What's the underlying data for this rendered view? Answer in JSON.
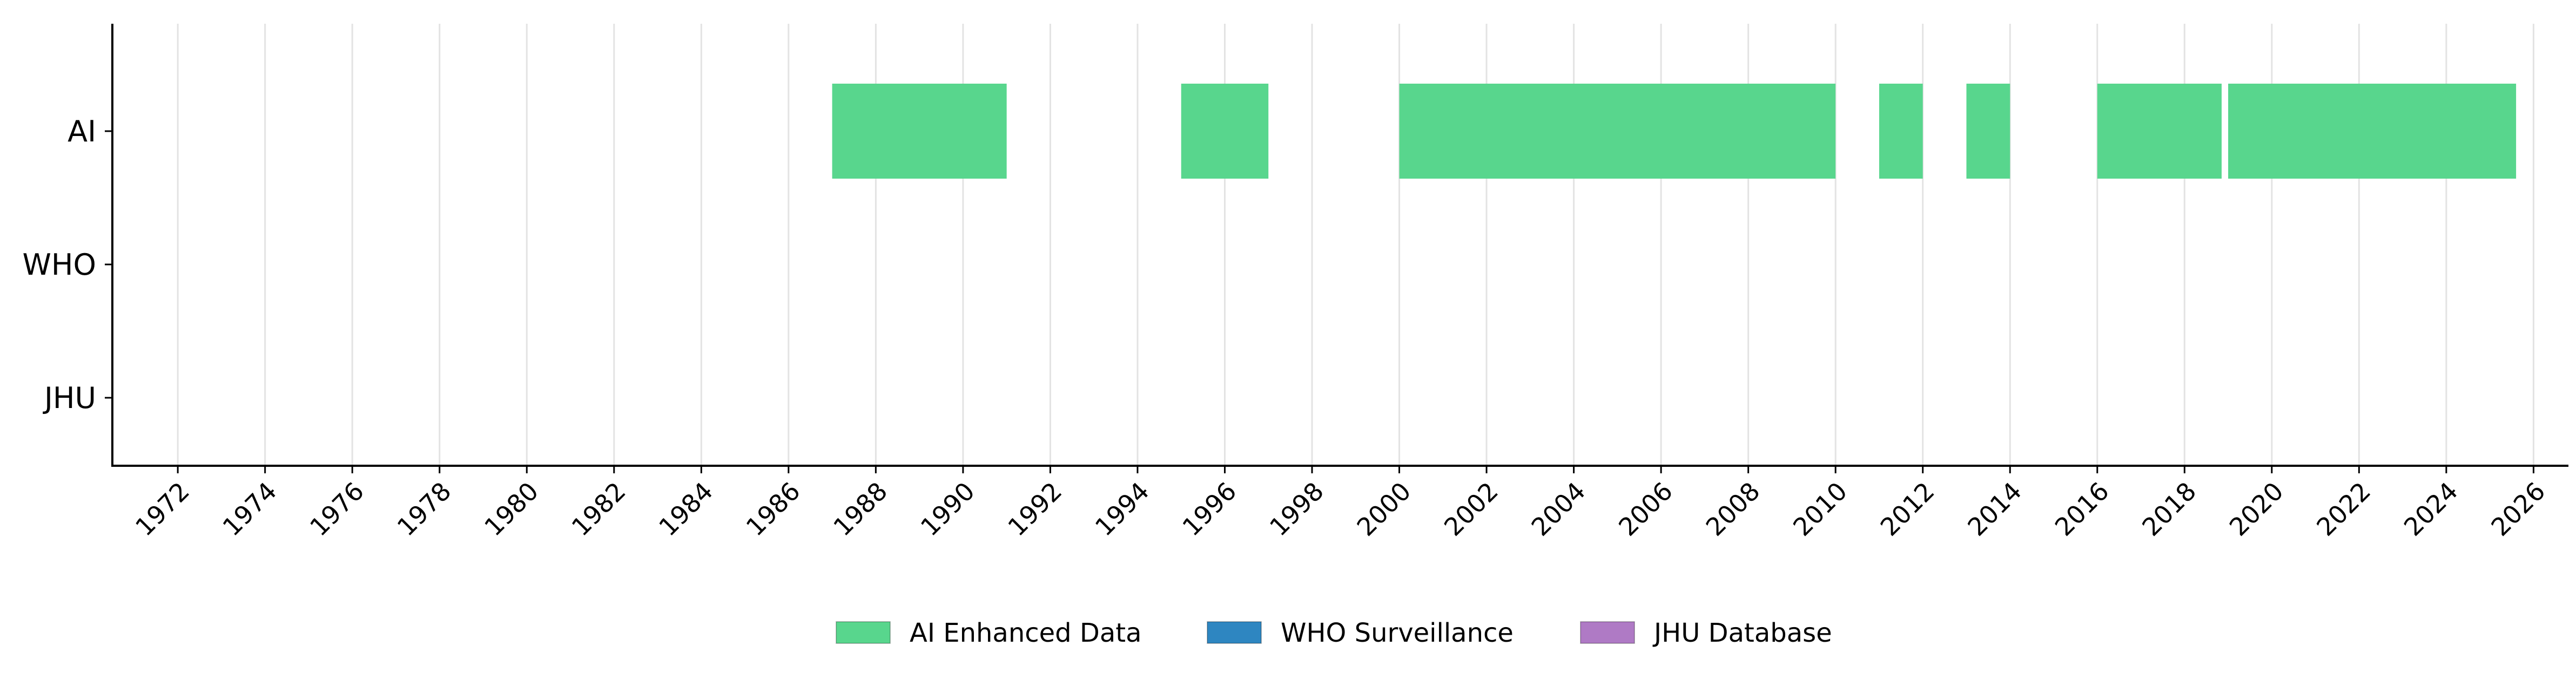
{
  "chart_data": {
    "type": "timeline",
    "title": "",
    "xlabel": "",
    "ylabel": "",
    "xlim": [
      1970.5,
      2026.8
    ],
    "x_ticks": [
      1972,
      1974,
      1976,
      1978,
      1980,
      1982,
      1984,
      1986,
      1988,
      1990,
      1992,
      1994,
      1996,
      1998,
      2000,
      2002,
      2004,
      2006,
      2008,
      2010,
      2012,
      2014,
      2016,
      2018,
      2020,
      2022,
      2024,
      2026
    ],
    "x_tick_labels": [
      "1972",
      "1974",
      "1976",
      "1978",
      "1980",
      "1982",
      "1984",
      "1986",
      "1988",
      "1990",
      "1992",
      "1994",
      "1996",
      "1998",
      "2000",
      "2002",
      "2004",
      "2006",
      "2008",
      "2010",
      "2012",
      "2014",
      "2016",
      "2018",
      "2020",
      "2022",
      "2024",
      "2026"
    ],
    "categories": [
      "AI",
      "WHO",
      "JHU"
    ],
    "grid": "vertical",
    "legend_position": "bottom-center",
    "series": [
      {
        "name": "AI Enhanced Data",
        "category": "AI",
        "color": "#58d68d",
        "intervals": [
          [
            1987.0,
            1991.0
          ],
          [
            1995.0,
            1997.0
          ],
          [
            2000.0,
            2010.0
          ],
          [
            2011.0,
            2012.0
          ],
          [
            2013.0,
            2014.0
          ],
          [
            2016.0,
            2018.85
          ],
          [
            2019.0,
            2025.6
          ]
        ]
      },
      {
        "name": "WHO Surveillance",
        "category": "WHO",
        "color": "#2e86c1",
        "intervals": []
      },
      {
        "name": "JHU Database",
        "category": "JHU",
        "color": "#af7ac5",
        "intervals": []
      }
    ]
  }
}
